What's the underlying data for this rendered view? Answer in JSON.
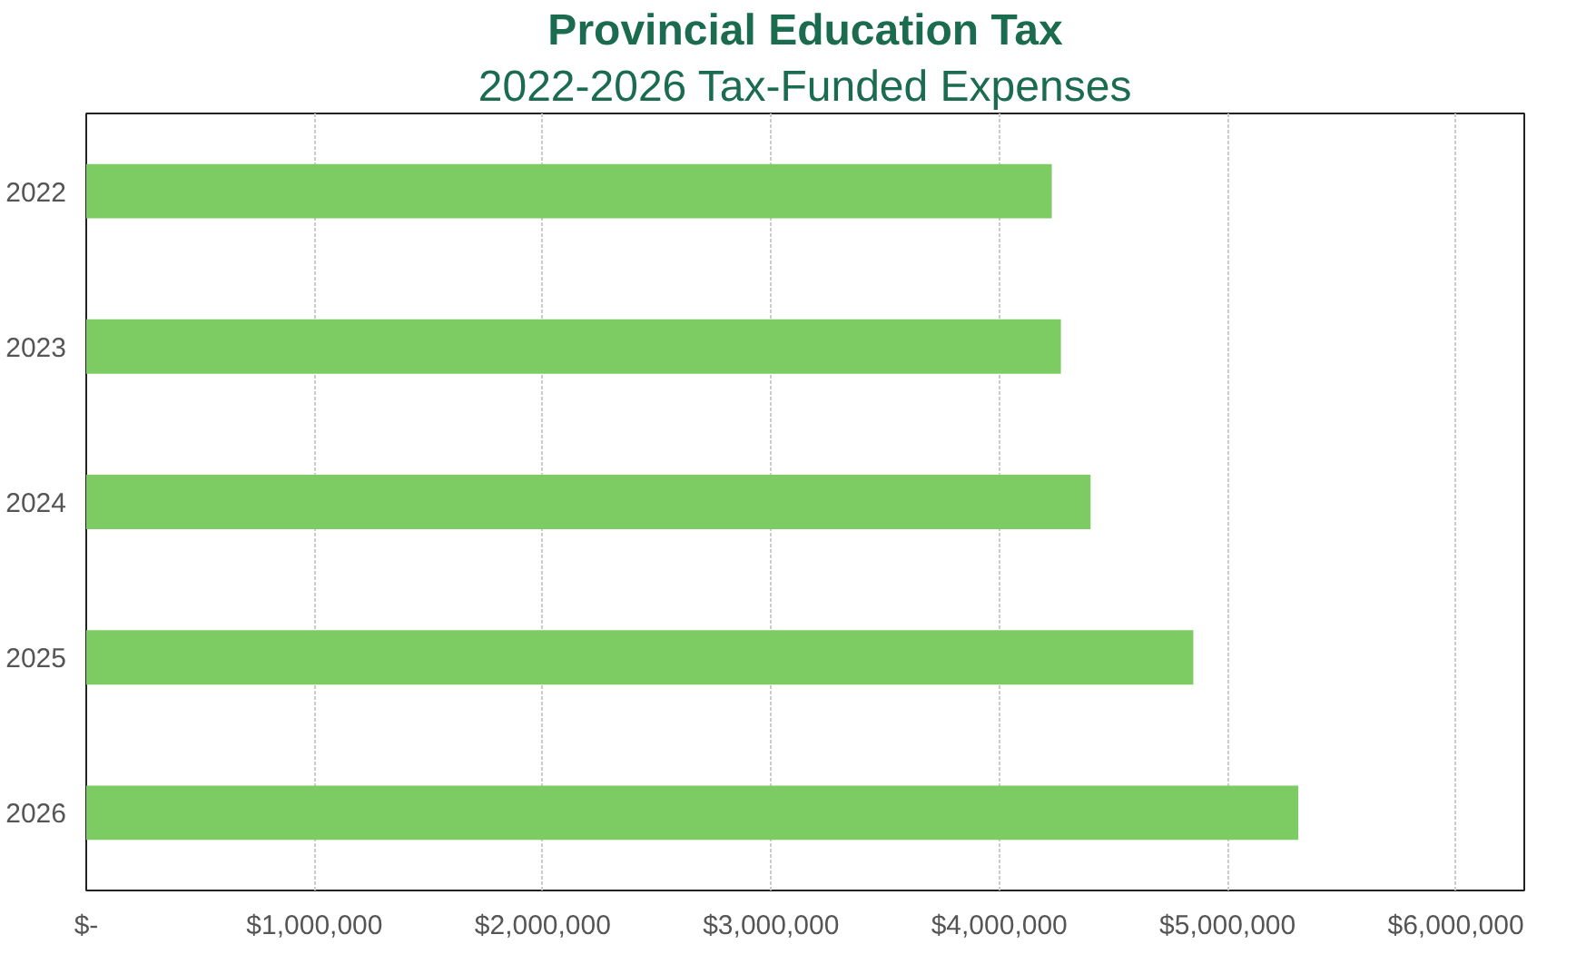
{
  "chart_data": {
    "type": "bar",
    "orientation": "horizontal",
    "title": "Provincial Education Tax",
    "subtitle": "2022-2026 Tax-Funded Expenses",
    "categories": [
      "2022",
      "2023",
      "2024",
      "2025",
      "2026"
    ],
    "values": [
      4230000,
      4270000,
      4400000,
      4850000,
      5310000
    ],
    "color": "#7dcb63",
    "xlim": [
      0,
      6300000
    ],
    "xticks": [
      {
        "value": 0,
        "label": "$-"
      },
      {
        "value": 1000000,
        "label": "$1,000,000"
      },
      {
        "value": 2000000,
        "label": "$2,000,000"
      },
      {
        "value": 3000000,
        "label": "$3,000,000"
      },
      {
        "value": 4000000,
        "label": "$4,000,000"
      },
      {
        "value": 5000000,
        "label": "$5,000,000"
      },
      {
        "value": 6000000,
        "label": "$6,000,000"
      }
    ],
    "grid": "x"
  }
}
